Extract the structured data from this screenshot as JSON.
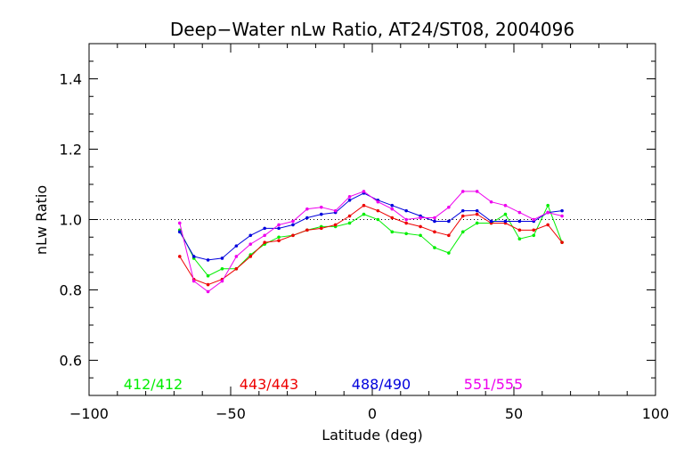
{
  "chart_data": {
    "type": "line",
    "title": "Deep−Water nLw Ratio, AT24/ST08, 2004096",
    "xlabel": "Latitude (deg)",
    "ylabel": "nLw Ratio",
    "xlim": [
      -100,
      100
    ],
    "ylim": [
      0.5,
      1.5
    ],
    "xticks": [
      -100,
      -50,
      0,
      50,
      100
    ],
    "xtick_labels": [
      "−100",
      "−50",
      "0",
      "50",
      "100"
    ],
    "yticks": [
      0.6,
      0.8,
      1.0,
      1.2,
      1.4
    ],
    "ytick_labels": [
      "0.6",
      "0.8",
      "1.0",
      "1.2",
      "1.4"
    ],
    "reference_line": 1.0,
    "grid": false,
    "x": [
      -68,
      -63,
      -58,
      -53,
      -48,
      -43,
      -38,
      -33,
      -28,
      -23,
      -18,
      -13,
      -8,
      -3,
      2,
      7,
      12,
      17,
      22,
      27,
      32,
      37,
      42,
      47,
      52,
      57,
      62,
      67
    ],
    "series": [
      {
        "name": "412/412",
        "color": "#00ee00",
        "values": [
          0.97,
          0.89,
          0.84,
          0.86,
          0.86,
          0.9,
          0.93,
          0.95,
          0.955,
          0.97,
          0.98,
          0.98,
          0.99,
          1.015,
          1.0,
          0.965,
          0.96,
          0.955,
          0.92,
          0.905,
          0.965,
          0.99,
          0.99,
          1.015,
          0.945,
          0.955,
          1.04,
          0.935
        ]
      },
      {
        "name": "443/443",
        "color": "#ee0000",
        "values": [
          0.895,
          0.83,
          0.815,
          0.83,
          0.86,
          0.895,
          0.935,
          0.94,
          0.955,
          0.97,
          0.975,
          0.985,
          1.01,
          1.04,
          1.025,
          1.005,
          0.99,
          0.98,
          0.965,
          0.955,
          1.01,
          1.015,
          0.99,
          0.99,
          0.97,
          0.97,
          0.985,
          0.935
        ]
      },
      {
        "name": "488/490",
        "color": "#0000dd",
        "values": [
          0.965,
          0.895,
          0.885,
          0.89,
          0.925,
          0.955,
          0.975,
          0.975,
          0.985,
          1.005,
          1.015,
          1.02,
          1.055,
          1.075,
          1.055,
          1.04,
          1.025,
          1.01,
          0.995,
          0.995,
          1.025,
          1.025,
          0.995,
          0.995,
          0.995,
          0.995,
          1.02,
          1.025
        ]
      },
      {
        "name": "551/555",
        "color": "#ee00ee",
        "values": [
          0.99,
          0.825,
          0.795,
          0.825,
          0.895,
          0.93,
          0.955,
          0.985,
          0.995,
          1.03,
          1.035,
          1.025,
          1.065,
          1.08,
          1.05,
          1.03,
          1.0,
          1.005,
          1.005,
          1.035,
          1.08,
          1.08,
          1.05,
          1.04,
          1.02,
          1.0,
          1.02,
          1.01
        ]
      }
    ],
    "legend_placement": "bottom-inside"
  }
}
